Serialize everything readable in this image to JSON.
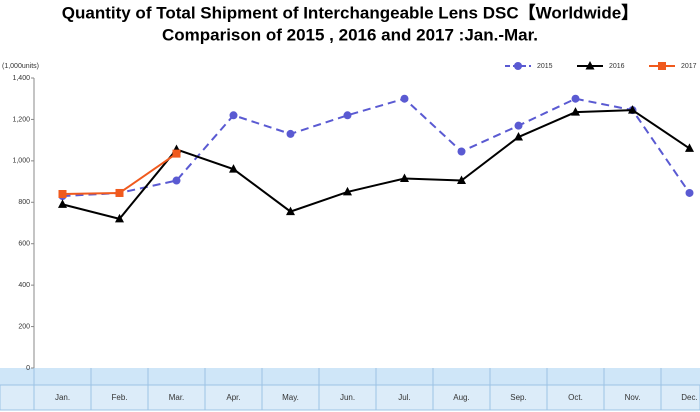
{
  "chart_data": {
    "type": "line",
    "title": "Quantity of Total Shipment of Interchangeable Lens DSC【Worldwide】",
    "subtitle": "Comparison of 2015 , 2016 and 2017 :Jan.-Mar.",
    "y_axis_label": "(1,000units)",
    "categories": [
      "Jan.",
      "Feb.",
      "Mar.",
      "Apr.",
      "May.",
      "Jun.",
      "Jul.",
      "Aug.",
      "Sep.",
      "Oct.",
      "Nov.",
      "Dec."
    ],
    "series": [
      {
        "name": "2015",
        "color": "#5a5ad2",
        "marker": "circle",
        "dashed": true,
        "values": [
          830,
          845,
          905,
          1220,
          1130,
          1220,
          1300,
          1045,
          1170,
          1300,
          1245,
          845
        ]
      },
      {
        "name": "2016",
        "color": "#000000",
        "marker": "triangle",
        "dashed": false,
        "values": [
          790,
          720,
          1055,
          960,
          755,
          850,
          915,
          905,
          1115,
          1235,
          1245,
          1060
        ]
      },
      {
        "name": "2017",
        "color": "#f05a1e",
        "marker": "square",
        "dashed": false,
        "values": [
          840,
          845,
          1035,
          null,
          null,
          null,
          null,
          null,
          null,
          null,
          null,
          null
        ]
      }
    ],
    "ylim": [
      0,
      1400
    ],
    "yticks": [
      0,
      200,
      400,
      600,
      800,
      {
        "value": 1000,
        "label": "1,000"
      },
      {
        "value": 1200,
        "label": "1,200"
      },
      {
        "value": 1400,
        "label": "1,400"
      }
    ],
    "legend": "top-right"
  }
}
